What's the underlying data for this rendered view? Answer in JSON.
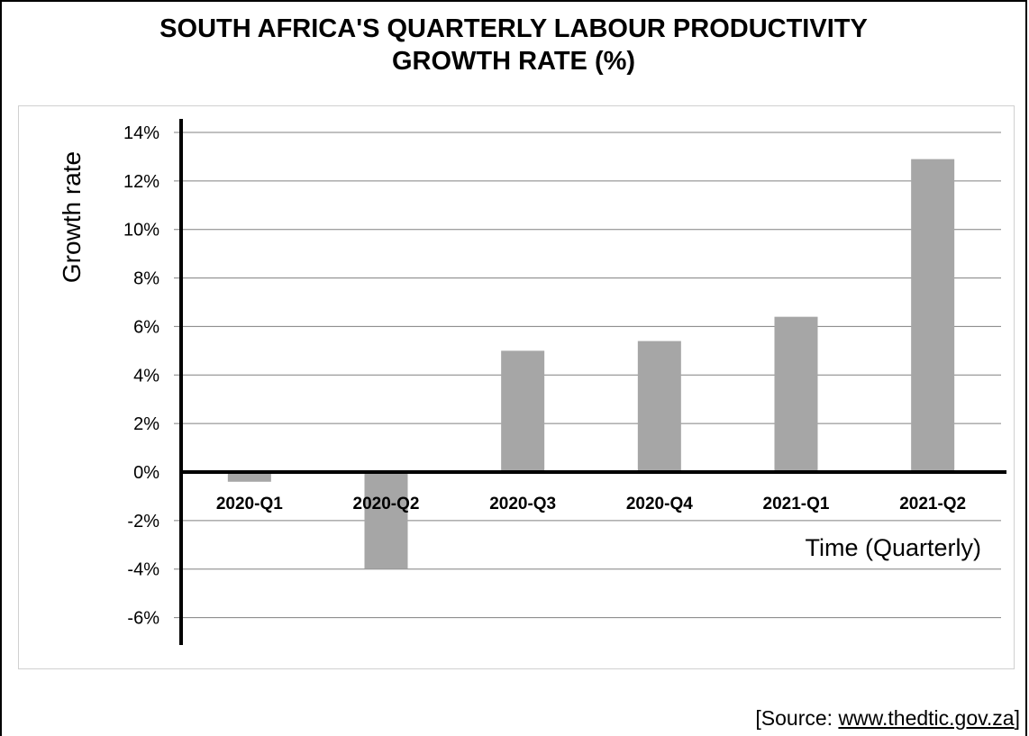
{
  "chart_data": {
    "type": "bar",
    "title_line1": "SOUTH AFRICA'S QUARTERLY LABOUR PRODUCTIVITY",
    "title_line2": "GROWTH RATE (%)",
    "xlabel": "Time (Quarterly)",
    "ylabel": "Growth rate",
    "categories": [
      "2020-Q1",
      "2020-Q2",
      "2020-Q3",
      "2020-Q4",
      "2021-Q1",
      "2021-Q2"
    ],
    "values": [
      -0.4,
      -4.0,
      5.0,
      5.4,
      6.4,
      12.9
    ],
    "ylim": [
      -7,
      14
    ],
    "yticks": [
      14,
      12,
      10,
      8,
      6,
      4,
      2,
      0,
      -2,
      -4,
      -6
    ],
    "ytick_labels": [
      "14%",
      "12%",
      "10%",
      "8%",
      "6%",
      "4%",
      "2%",
      "0%",
      "-2%",
      "-4%",
      "-6%"
    ],
    "grid": true,
    "bar_color": "#a6a6a6"
  },
  "source": {
    "prefix": "[Source: ",
    "link": "www.thedtic.gov.za",
    "suffix": "]"
  }
}
